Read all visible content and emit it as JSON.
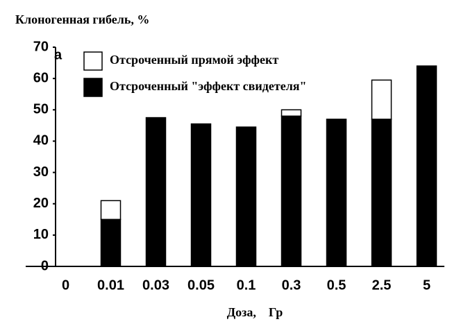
{
  "chart_data": {
    "type": "stacked_bar",
    "title": "Клоногенная гибель, %",
    "x_label": "Доза,    Гр",
    "annotation": "a",
    "categories": [
      "0",
      "0.01",
      "0.03",
      "0.05",
      "0.1",
      "0.3",
      "0.5",
      "2.5",
      "5"
    ],
    "series": [
      {
        "name": "Отсроченный \"эффект свидетеля\"",
        "color": "#000000",
        "values": [
          0,
          15,
          47.5,
          45.5,
          44.5,
          48,
          47,
          47,
          64
        ]
      },
      {
        "name": "Отсроченный прямой эффект",
        "color": "#ffffff",
        "values": [
          0,
          6,
          0,
          0,
          0,
          2,
          0,
          12.5,
          0
        ]
      }
    ],
    "ylim": [
      0,
      70
    ],
    "yticks": [
      0,
      10,
      20,
      30,
      40,
      50,
      60,
      70
    ]
  }
}
